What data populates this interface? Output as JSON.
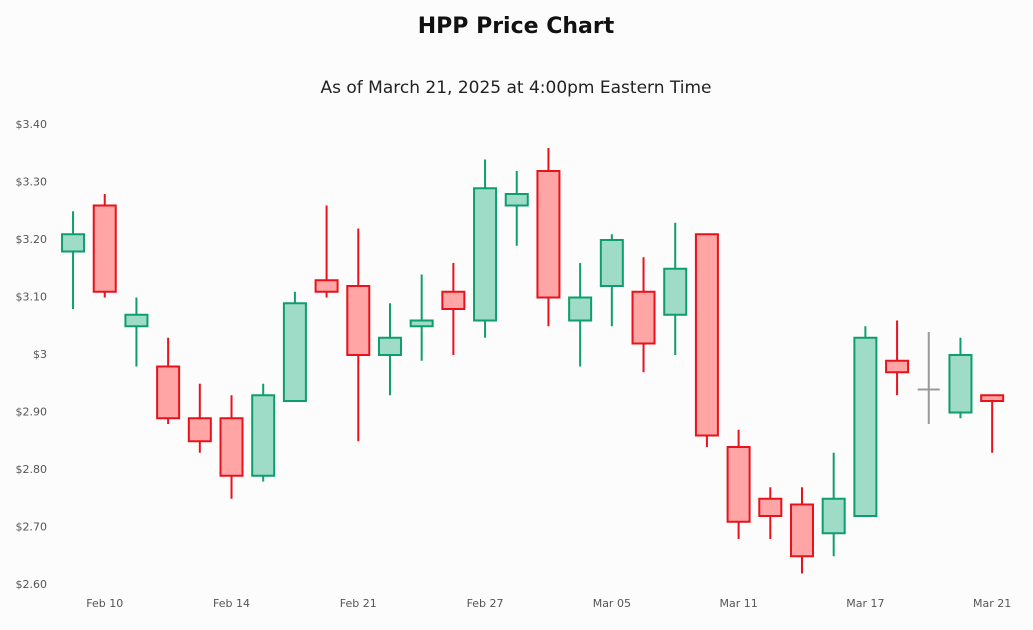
{
  "chart_data": {
    "type": "candlestick",
    "title": "HPP Price Chart",
    "subtitle": "As of March 21, 2025 at 4:00pm Eastern Time",
    "categories": [
      null,
      "Feb 10",
      null,
      null,
      null,
      "Feb 14",
      null,
      null,
      null,
      "Feb 21",
      null,
      null,
      null,
      "Feb 27",
      null,
      null,
      null,
      "Mar 05",
      null,
      null,
      null,
      "Mar 11",
      null,
      null,
      null,
      "Mar 17",
      null,
      null,
      null,
      "Mar 21"
    ],
    "series": [
      {
        "open": [
          3.18,
          3.26,
          3.05,
          2.98,
          2.89,
          2.89,
          2.79,
          2.92,
          3.13,
          3.12,
          3.0,
          3.05,
          3.11,
          3.06,
          3.26,
          3.32,
          3.06,
          3.12,
          3.11,
          3.07,
          3.21,
          2.84,
          2.75,
          2.74,
          2.69,
          2.72,
          2.99,
          2.94,
          2.9,
          2.93
        ],
        "high": [
          3.25,
          3.28,
          3.1,
          3.03,
          2.95,
          2.93,
          2.95,
          3.11,
          3.26,
          3.22,
          3.09,
          3.14,
          3.16,
          3.34,
          3.32,
          3.36,
          3.16,
          3.21,
          3.17,
          3.23,
          3.21,
          2.87,
          2.77,
          2.77,
          2.83,
          3.05,
          3.06,
          3.04,
          3.03,
          2.93
        ],
        "low": [
          3.08,
          3.1,
          2.98,
          2.88,
          2.83,
          2.75,
          2.78,
          2.92,
          3.1,
          2.85,
          2.93,
          2.99,
          3.0,
          3.03,
          3.19,
          3.05,
          2.98,
          3.05,
          2.97,
          3.0,
          2.84,
          2.68,
          2.68,
          2.62,
          2.65,
          2.72,
          2.93,
          2.88,
          2.89,
          2.83
        ],
        "close": [
          3.21,
          3.11,
          3.07,
          2.89,
          2.85,
          2.79,
          2.93,
          3.09,
          3.11,
          3.0,
          3.03,
          3.06,
          3.08,
          3.29,
          3.28,
          3.1,
          3.1,
          3.2,
          3.02,
          3.15,
          2.86,
          2.71,
          2.72,
          2.65,
          2.75,
          3.03,
          2.97,
          2.94,
          3.0,
          2.92
        ]
      }
    ],
    "ylim": [
      2.6,
      3.4
    ],
    "yticks": [
      {
        "value": 2.6,
        "label": "$2.60"
      },
      {
        "value": 2.7,
        "label": "$2.70"
      },
      {
        "value": 2.8,
        "label": "$2.80"
      },
      {
        "value": 2.9,
        "label": "$2.90"
      },
      {
        "value": 3.0,
        "label": "$3"
      },
      {
        "value": 3.1,
        "label": "$3.10"
      },
      {
        "value": 3.2,
        "label": "$3.20"
      },
      {
        "value": 3.3,
        "label": "$3.30"
      },
      {
        "value": 3.4,
        "label": "$3.40"
      }
    ],
    "up_color": "#0d9e6c",
    "up_fill": "#9fdcc7",
    "down_color": "#e8121c",
    "down_fill": "#ffa5a5",
    "flat_color": "#9a9a9a"
  }
}
